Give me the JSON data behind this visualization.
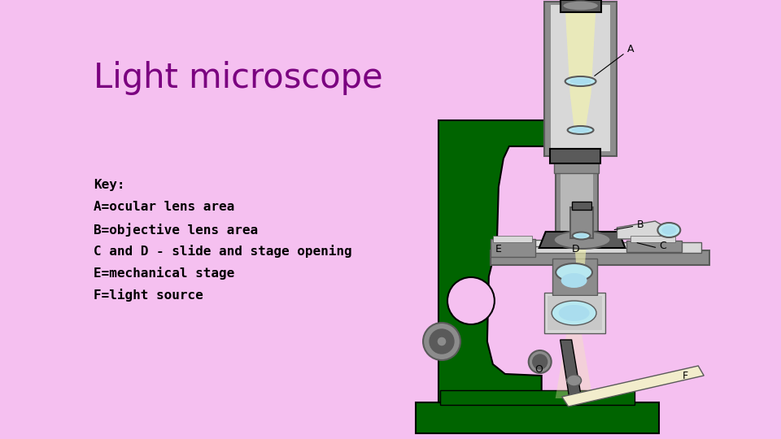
{
  "background_color": "#f5c0f0",
  "title": "Light microscope",
  "title_color": "#7b0080",
  "title_fontsize": 30,
  "key_lines": [
    "Key:",
    "A=ocular lens area",
    "B=objective lens area",
    "C and D - slide and stage opening",
    "E=mechanical stage",
    "F=light source"
  ],
  "key_fontsize": 11.5,
  "green_dark": "#006400",
  "gray_dark": "#5a5a5a",
  "gray_mid": "#8c8c8c",
  "gray_light": "#b8b8b8",
  "gray_lighter": "#d8d8d8",
  "light_yellow": "#f0f0b0",
  "light_blue": "#aaddee",
  "cyan_light": "#b8e8f0",
  "black": "#000000",
  "beige": "#f2edcc",
  "white": "#ffffff"
}
